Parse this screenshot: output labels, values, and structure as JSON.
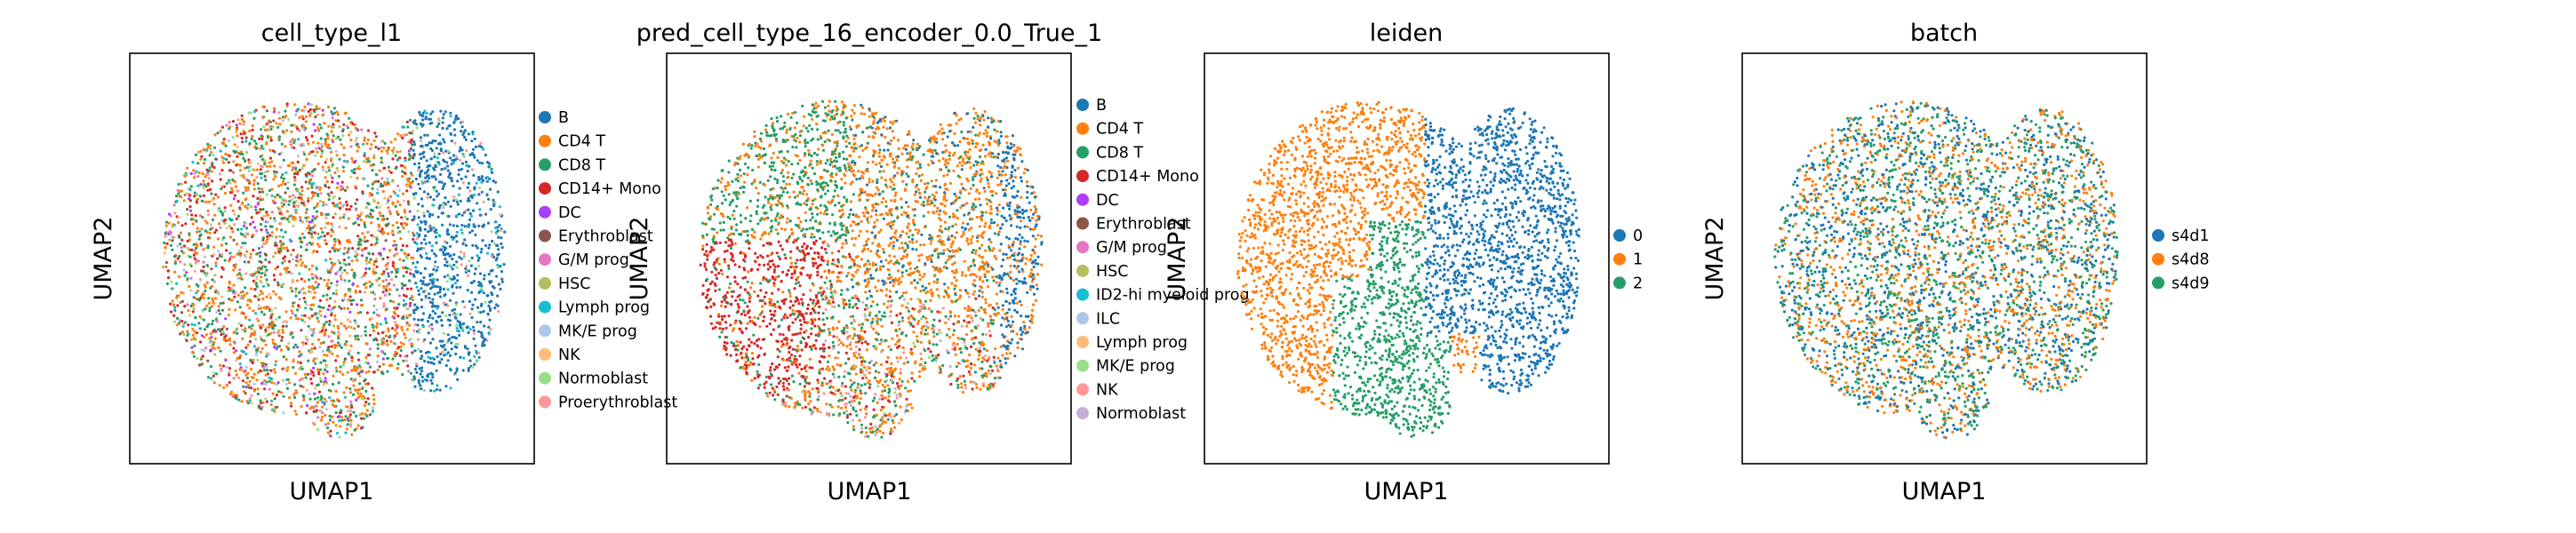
{
  "figure": {
    "panels": [
      {
        "title": "cell_type_l1",
        "xlabel": "UMAP1",
        "ylabel": "UMAP2",
        "legend": [
          "B",
          "CD4 T",
          "CD8 T",
          "CD14+ Mono",
          "DC",
          "Erythroblast",
          "G/M prog",
          "HSC",
          "Lymph prog",
          "MK/E prog",
          "NK",
          "Normoblast",
          "Proerythroblast"
        ]
      },
      {
        "title": "pred_cell_type_16_encoder_0.0_True_1",
        "xlabel": "UMAP1",
        "ylabel": "UMAP2",
        "legend": [
          "B",
          "CD4 T",
          "CD8 T",
          "CD14+ Mono",
          "DC",
          "Erythroblast",
          "G/M prog",
          "HSC",
          "ID2-hi myeloid prog",
          "ILC",
          "Lymph prog",
          "MK/E prog",
          "NK",
          "Normoblast"
        ]
      },
      {
        "title": "leiden",
        "xlabel": "UMAP1",
        "ylabel": "UMAP2",
        "legend": [
          "0",
          "1",
          "2"
        ]
      },
      {
        "title": "batch",
        "xlabel": "UMAP1",
        "ylabel": "UMAP2",
        "legend": [
          "s4d1",
          "s4d8",
          "s4d9"
        ]
      }
    ]
  },
  "chart_data": [
    {
      "type": "scatter",
      "title": "cell_type_l1",
      "xlabel": "UMAP1",
      "ylabel": "UMAP2",
      "ticks": "none",
      "legend_position": "right",
      "categories": [
        "B",
        "CD4 T",
        "CD8 T",
        "CD14+ Mono",
        "DC",
        "Erythroblast",
        "G/M prog",
        "HSC",
        "Lymph prog",
        "MK/E prog",
        "NK",
        "Normoblast",
        "Proerythroblast"
      ],
      "colors": [
        "#1f77b4",
        "#ff7f0e",
        "#279e68",
        "#d62728",
        "#aa40fc",
        "#8c564b",
        "#e377c2",
        "#b5bd61",
        "#17becf",
        "#aec7e8",
        "#ffbb78",
        "#98df8a",
        "#ff9896"
      ],
      "note_points": "dense overlapping categorical point cloud; B concentrated on right lobe; CD4 T/CD8 T spread across left-center; mixed categories elsewhere"
    },
    {
      "type": "scatter",
      "title": "pred_cell_type_16_encoder_0.0_True_1",
      "xlabel": "UMAP1",
      "ylabel": "UMAP2",
      "ticks": "none",
      "legend_position": "right",
      "categories": [
        "B",
        "CD4 T",
        "CD8 T",
        "CD14+ Mono",
        "DC",
        "Erythroblast",
        "G/M prog",
        "HSC",
        "ID2-hi myeloid prog",
        "ILC",
        "Lymph prog",
        "MK/E prog",
        "NK",
        "Normoblast"
      ],
      "colors": [
        "#1f77b4",
        "#ff7f0e",
        "#279e68",
        "#d62728",
        "#aa40fc",
        "#8c564b",
        "#e377c2",
        "#b5bd61",
        "#17becf",
        "#aec7e8",
        "#ffbb78",
        "#98df8a",
        "#ff9896",
        "#c5b0d5"
      ],
      "note_points": "CD4 T dominant upper-right; CD8 T upper-left; CD14+ Mono lower-left cluster; B right edge"
    },
    {
      "type": "scatter",
      "title": "leiden",
      "xlabel": "UMAP1",
      "ylabel": "UMAP2",
      "ticks": "none",
      "legend_position": "right",
      "categories": [
        "0",
        "1",
        "2"
      ],
      "colors": [
        "#1f77b4",
        "#ff7f0e",
        "#279e68"
      ],
      "note_points": "cluster 1 left half, cluster 0 right half, cluster 2 lower-center"
    },
    {
      "type": "scatter",
      "title": "batch",
      "xlabel": "UMAP1",
      "ylabel": "UMAP2",
      "ticks": "none",
      "legend_position": "right",
      "categories": [
        "s4d1",
        "s4d8",
        "s4d9"
      ],
      "colors": [
        "#1f77b4",
        "#ff7f0e",
        "#279e68"
      ],
      "note_points": "well mixed across whole embedding"
    }
  ]
}
